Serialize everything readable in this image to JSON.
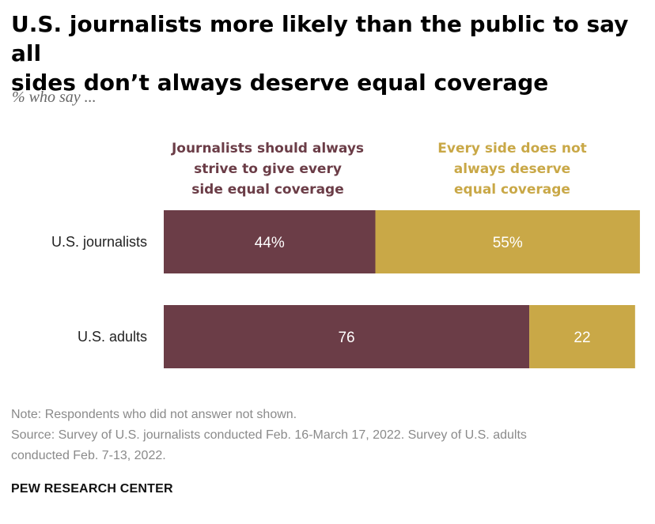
{
  "header": {
    "title_line1": "U.S. journalists more likely than the public to say all",
    "title_line2": "sides don’t always deserve equal coverage",
    "subtitle": "% who say ..."
  },
  "chart_data": {
    "type": "bar",
    "orientation": "horizontal-stacked",
    "categories": [
      "U.S. journalists",
      "U.S. adults"
    ],
    "series": [
      {
        "name": "Journalists should always strive to give every side equal coverage",
        "legend_lines": [
          "Journalists should always",
          "strive to give every",
          "side equal coverage"
        ],
        "values": [
          44,
          76
        ],
        "labels": [
          "44%",
          "76"
        ],
        "color": "#6b3d47"
      },
      {
        "name": "Every side does not always deserve equal coverage",
        "legend_lines": [
          "Every side does not",
          "always deserve",
          "equal coverage"
        ],
        "values": [
          55,
          22
        ],
        "labels": [
          "55%",
          "22"
        ],
        "color": "#c9a847"
      }
    ],
    "xlim": [
      0,
      100
    ],
    "grid": false,
    "legend_position": "top"
  },
  "footer": {
    "note": "Note: Respondents who did not answer not shown.",
    "source_line1": "Source: Survey of U.S. journalists conducted Feb. 16-March 17, 2022. Survey of U.S. adults",
    "source_line2": "conducted Feb. 7-13, 2022.",
    "brand": "PEW RESEARCH CENTER"
  }
}
